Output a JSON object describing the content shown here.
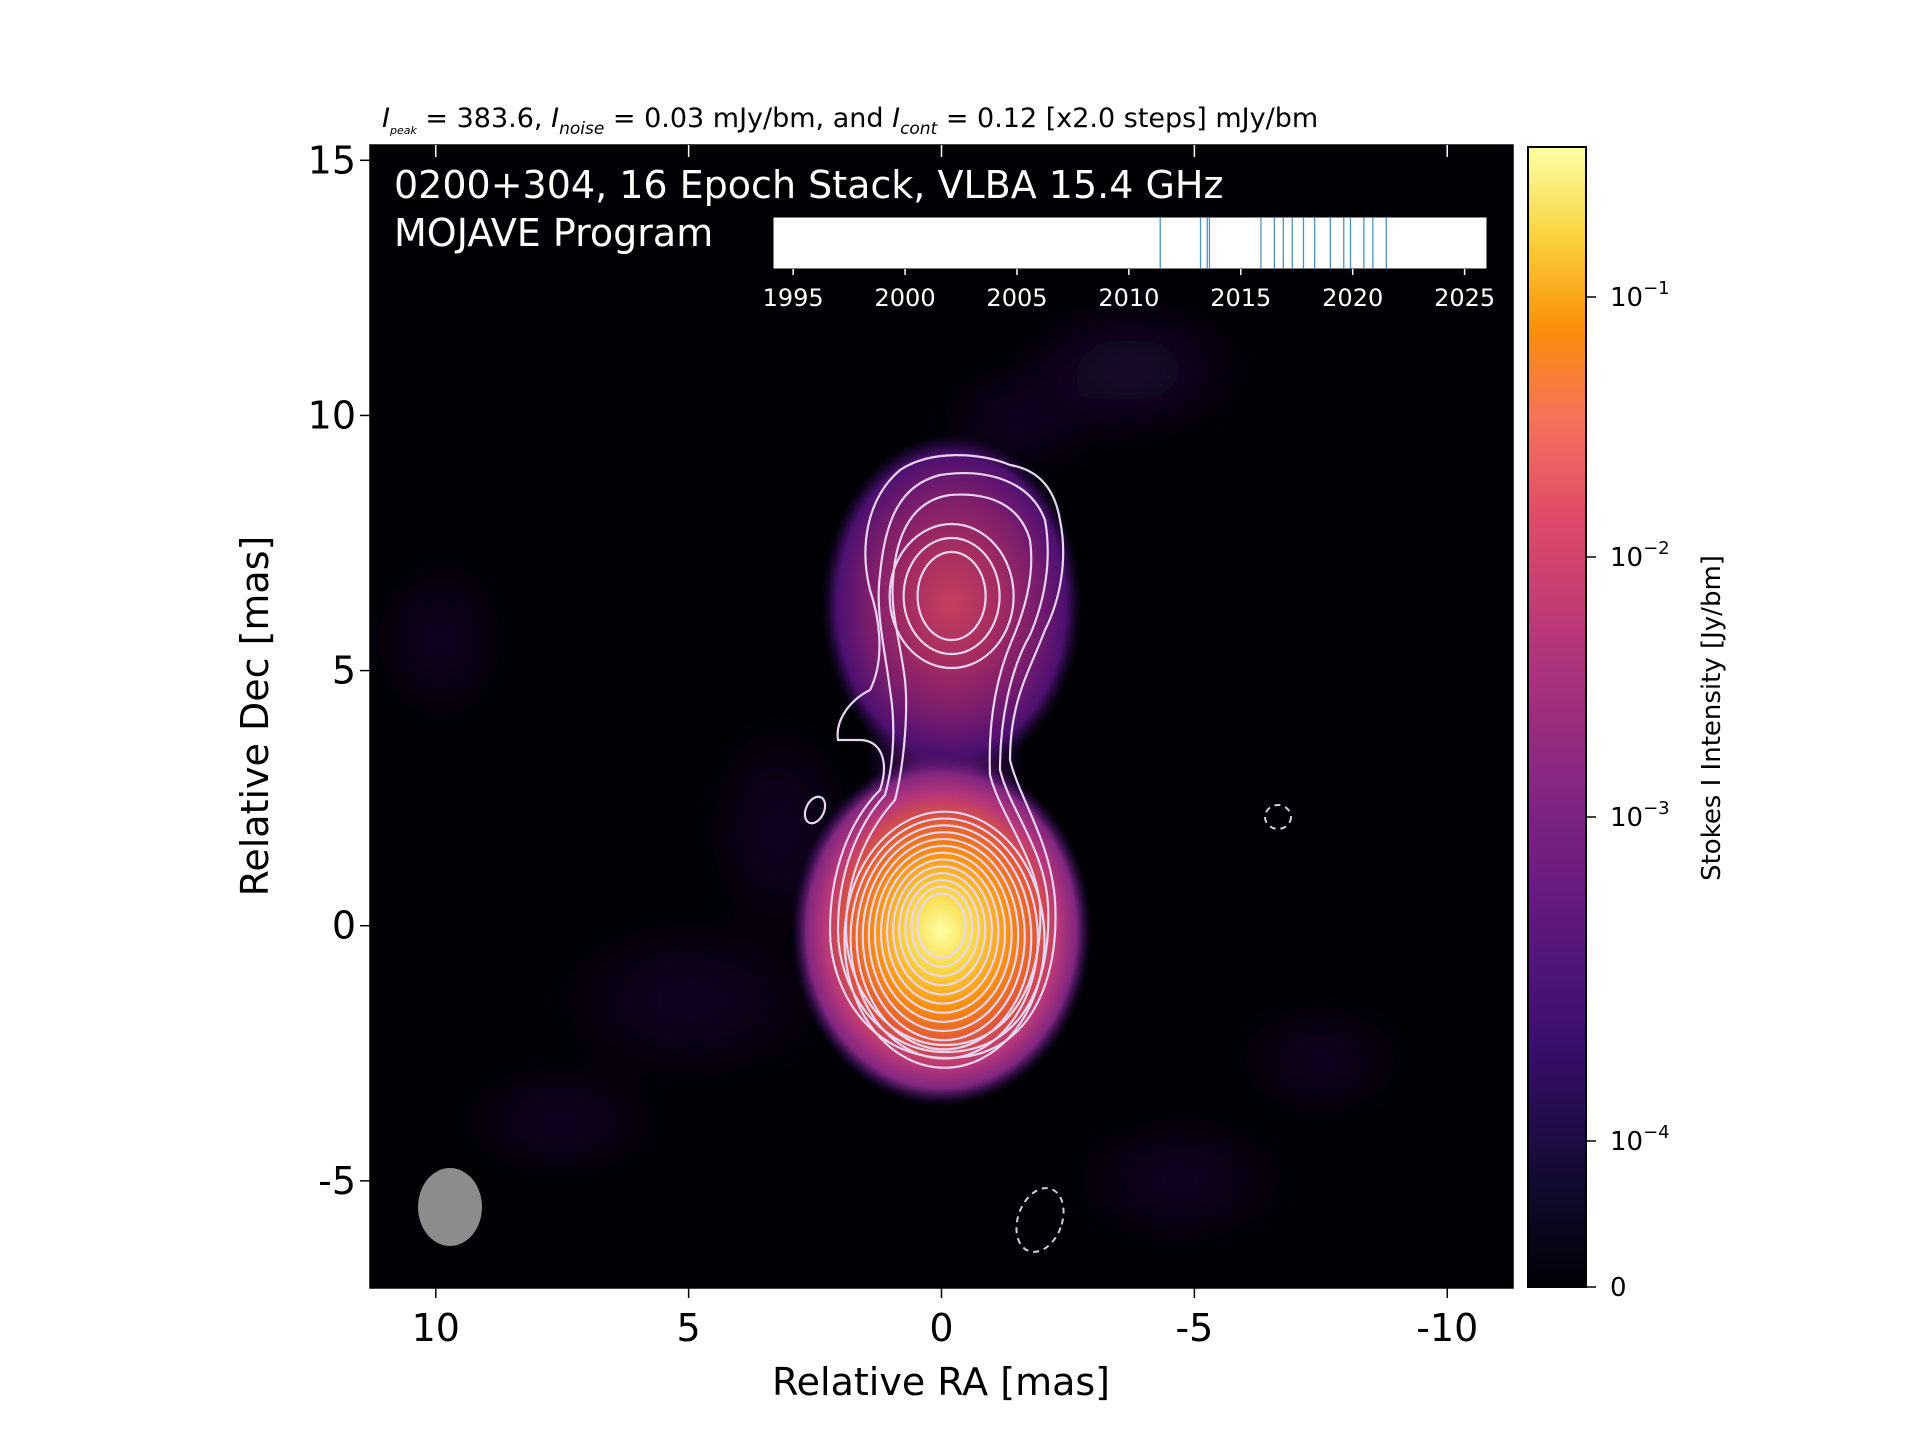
{
  "figure": {
    "top_caption": {
      "pre": "I",
      "peak_sub": "peak",
      "peak_text": " = 383.6, ",
      "noise_sub": "noise",
      "noise_text": " = 0.03 mJy/bm, and ",
      "cont_sub": "cont",
      "cont_text": " = 0.12 [x2.0 steps] mJy/bm"
    },
    "overlay_title_line1": "0200+304, 16 Epoch Stack, VLBA 15.4 GHz",
    "overlay_title_line2": "MOJAVE Program",
    "xlabel": "Relative RA [mas]",
    "ylabel": "Relative Dec [mas]",
    "colorbar_label": "Stokes I Intensity [Jy/bm]"
  },
  "chart_data": [
    {
      "type": "heatmap",
      "title": "0200+304, 16 Epoch Stack, VLBA 15.4 GHz",
      "xlabel": "Relative RA [mas]",
      "ylabel": "Relative Dec [mas]",
      "xlim": [
        11.3,
        -11.3
      ],
      "ylim": [
        -7.1,
        15.3
      ],
      "x_ticks": [
        10,
        5,
        0,
        -5,
        -10
      ],
      "x_tick_labels": [
        "10",
        "5",
        "0",
        "-5",
        "-10"
      ],
      "y_ticks": [
        -5,
        0,
        5,
        10,
        15
      ],
      "y_tick_labels": [
        "-5",
        "0",
        "5",
        "10",
        "15"
      ],
      "colormap": "inferno",
      "colorbar": {
        "label": "Stokes I Intensity [Jy/bm]",
        "scale": "log",
        "ticks": [
          {
            "base": "0",
            "exp": ""
          },
          {
            "base": "10",
            "exp": "−4"
          },
          {
            "base": "10",
            "exp": "−3"
          },
          {
            "base": "10",
            "exp": "−2"
          },
          {
            "base": "10",
            "exp": "−1"
          }
        ]
      },
      "peak_intensity_mJy_per_bm": 383.6,
      "noise_mJy_per_bm": 0.03,
      "lowest_contour_mJy_per_bm": 0.12,
      "contour_step_factor": 2.0,
      "components": [
        {
          "name": "core",
          "x": 0.0,
          "y": 0.0
        },
        {
          "name": "jet",
          "x": -0.2,
          "y": 6.5
        }
      ],
      "negative_contours": [
        {
          "x": -6.5,
          "y": 2.1
        },
        {
          "x": -1.9,
          "y": -5.8
        }
      ],
      "beam": {
        "x": 9.7,
        "y": -5.5,
        "major_mas": 1.55,
        "minor_mas": 1.25,
        "pa_deg": 0,
        "color": "#8c8c8c"
      }
    },
    {
      "type": "scatter",
      "title": "",
      "xlabel": "",
      "ylabel": "",
      "xlim": [
        1994.1,
        2026.0
      ],
      "x_ticks": [
        1995,
        2000,
        2005,
        2010,
        2015,
        2020,
        2025
      ],
      "x_tick_labels": [
        "1995",
        "2000",
        "2005",
        "2010",
        "2015",
        "2020",
        "2025"
      ],
      "epochs": [
        2011.4,
        2013.2,
        2013.5,
        2013.6,
        2015.9,
        2016.5,
        2016.9,
        2017.3,
        2017.8,
        2018.3,
        2019.0,
        2019.6,
        2019.9,
        2020.5,
        2020.9,
        2021.5
      ],
      "marker_color": "#1f77b4"
    }
  ]
}
